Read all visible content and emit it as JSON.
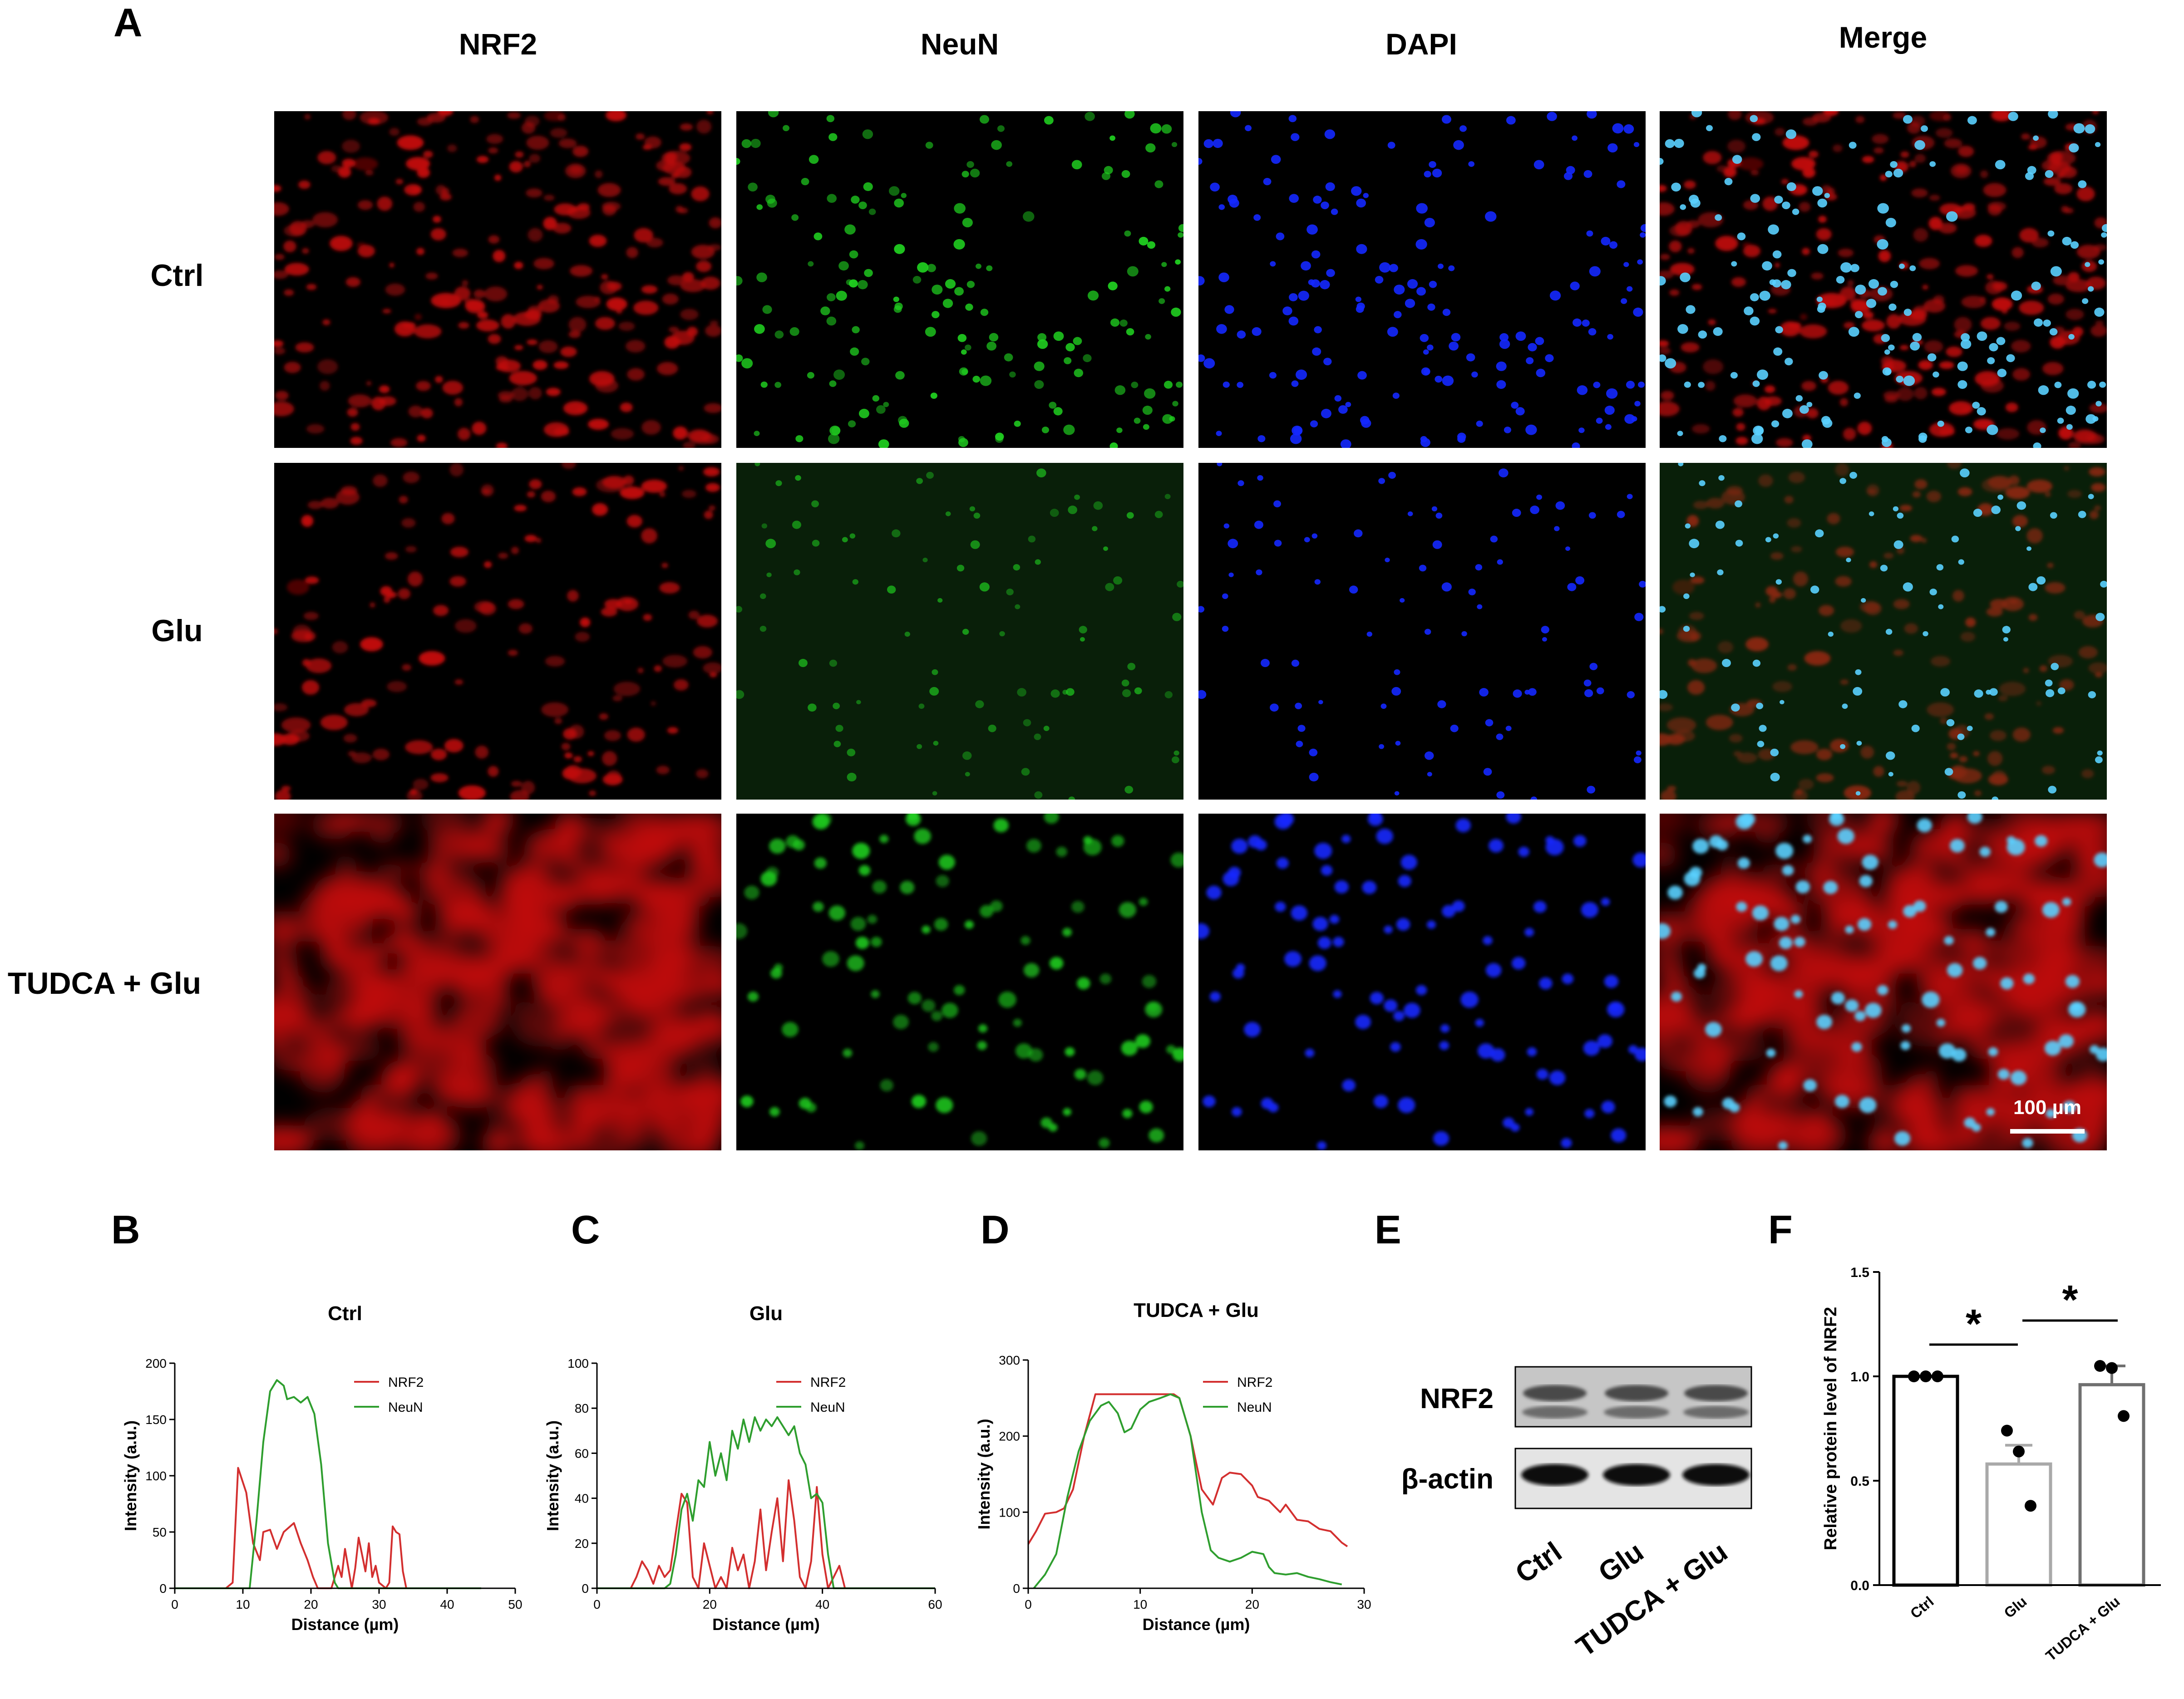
{
  "panel_labels": {
    "A": "A",
    "B": "B",
    "C": "C",
    "D": "D",
    "E": "E",
    "F": "F"
  },
  "microscopy": {
    "columns": [
      "NRF2",
      "NeuN",
      "DAPI",
      "Merge"
    ],
    "rows": [
      "Ctrl",
      "Glu",
      "TUDCA + Glu"
    ],
    "scale_bar": "100 µm",
    "channel_colors": {
      "NRF2": "#e01010",
      "NeuN": "#20d020",
      "DAPI": "#1428ff",
      "Merge": "#5ad0ff"
    }
  },
  "chart_data": [
    {
      "id": "B",
      "type": "line",
      "title": "Ctrl",
      "xlabel": "Distance (µm)",
      "ylabel": "Intensity (a.u.)",
      "xlim": [
        0,
        50
      ],
      "ylim": [
        0,
        200
      ],
      "xticks": [
        0,
        10,
        20,
        30,
        40,
        50
      ],
      "yticks": [
        0,
        50,
        100,
        150,
        200
      ],
      "legend_position": "top-right",
      "series": [
        {
          "name": "NRF2",
          "color": "#d32f2f",
          "x": [
            0,
            7.5,
            8.5,
            9.3,
            10.5,
            11.5,
            12.5,
            13,
            14,
            15,
            16,
            17.5,
            18.5,
            19.5,
            20.3,
            21,
            22,
            23,
            24,
            24.5,
            25,
            26,
            26.5,
            27,
            28,
            28.5,
            29,
            29.5,
            30,
            31,
            31.5,
            32,
            32.5,
            33,
            33.5,
            34,
            45
          ],
          "y": [
            0,
            0,
            5,
            107,
            85,
            40,
            25,
            50,
            52,
            35,
            50,
            58,
            40,
            25,
            10,
            0,
            0,
            0,
            20,
            10,
            35,
            0,
            18,
            45,
            15,
            40,
            10,
            20,
            5,
            0,
            5,
            55,
            50,
            48,
            15,
            0,
            0
          ]
        },
        {
          "name": "NeuN",
          "color": "#2e9e2e",
          "x": [
            0,
            11,
            12,
            13,
            14,
            15,
            16,
            16.5,
            17.5,
            18.5,
            19.5,
            20.5,
            21.5,
            22.5,
            23.5,
            24,
            45
          ],
          "y": [
            0,
            0,
            60,
            130,
            175,
            185,
            180,
            168,
            170,
            165,
            170,
            155,
            110,
            40,
            5,
            0,
            0
          ]
        }
      ]
    },
    {
      "id": "C",
      "type": "line",
      "title": "Glu",
      "xlabel": "Distance (µm)",
      "ylabel": "Intensity (a.u.)",
      "xlim": [
        0,
        60
      ],
      "ylim": [
        0,
        100
      ],
      "xticks": [
        0,
        20,
        40,
        60
      ],
      "yticks": [
        0,
        20,
        40,
        60,
        80,
        100
      ],
      "legend_position": "top-right",
      "series": [
        {
          "name": "NRF2",
          "color": "#d32f2f",
          "x": [
            0,
            6,
            7,
            8,
            9,
            10,
            11,
            12,
            13,
            14,
            15,
            16,
            17,
            18,
            19,
            20,
            21,
            22,
            23,
            24,
            25,
            26,
            27,
            28,
            29,
            30,
            31,
            32,
            33,
            34,
            35,
            36,
            37,
            38,
            39,
            40,
            41,
            42,
            43,
            44,
            45
          ],
          "y": [
            0,
            0,
            5,
            12,
            8,
            2,
            10,
            5,
            8,
            25,
            42,
            38,
            5,
            0,
            20,
            10,
            0,
            5,
            0,
            18,
            8,
            15,
            0,
            12,
            35,
            8,
            25,
            40,
            12,
            48,
            30,
            5,
            0,
            12,
            45,
            15,
            0,
            5,
            10,
            0,
            0
          ]
        },
        {
          "name": "NeuN",
          "color": "#2e9e2e",
          "x": [
            0,
            12,
            13,
            14,
            15,
            16,
            17,
            18,
            19,
            20,
            21,
            22,
            23,
            24,
            25,
            26,
            27,
            28,
            29,
            30,
            31,
            32,
            33,
            34,
            35,
            36,
            37,
            38,
            39,
            40,
            41,
            42,
            43,
            60
          ],
          "y": [
            0,
            0,
            2,
            15,
            35,
            42,
            30,
            48,
            45,
            65,
            50,
            60,
            48,
            70,
            62,
            75,
            65,
            76,
            70,
            75,
            72,
            76,
            72,
            68,
            72,
            60,
            55,
            40,
            42,
            38,
            15,
            0,
            0,
            0
          ]
        }
      ]
    },
    {
      "id": "D",
      "type": "line",
      "title": "TUDCA + Glu",
      "xlabel": "Distance (µm)",
      "ylabel": "Intensity (a.u.)",
      "xlim": [
        0,
        30
      ],
      "ylim": [
        0,
        300
      ],
      "xticks": [
        0,
        10,
        20,
        30
      ],
      "yticks": [
        0,
        100,
        200,
        300
      ],
      "legend_position": "top-right",
      "series": [
        {
          "name": "NRF2",
          "color": "#d32f2f",
          "x": [
            0,
            0.7,
            1.5,
            2.5,
            3.2,
            4,
            5,
            6,
            7,
            8,
            9,
            10,
            11,
            12,
            13,
            13.5,
            14.5,
            15.5,
            16.5,
            17.3,
            18,
            19,
            20,
            20.5,
            21.5,
            22.5,
            23,
            24,
            25,
            26,
            27,
            28,
            28.5
          ],
          "y": [
            58,
            75,
            98,
            100,
            105,
            130,
            200,
            255,
            255,
            255,
            255,
            255,
            255,
            255,
            255,
            250,
            200,
            130,
            110,
            145,
            152,
            150,
            135,
            120,
            115,
            100,
            110,
            90,
            88,
            78,
            75,
            60,
            55
          ]
        },
        {
          "name": "NeuN",
          "color": "#2e9e2e",
          "x": [
            0.5,
            1.5,
            2.5,
            3.5,
            4.5,
            5.5,
            6.5,
            7.2,
            8,
            8.6,
            9.2,
            10,
            10.8,
            11.8,
            12.7,
            13.5,
            14.5,
            15.5,
            16.3,
            17,
            18,
            19,
            20,
            21,
            21.5,
            22,
            23,
            24,
            25,
            26,
            27,
            28
          ],
          "y": [
            0,
            18,
            45,
            120,
            180,
            220,
            240,
            245,
            230,
            205,
            210,
            235,
            245,
            250,
            255,
            250,
            200,
            100,
            50,
            40,
            35,
            40,
            48,
            45,
            28,
            20,
            18,
            20,
            15,
            12,
            8,
            5
          ]
        }
      ]
    },
    {
      "id": "F",
      "type": "bar",
      "title": "",
      "ylabel": "Relative protein level of NRF2",
      "categories": [
        "Ctrl",
        "Glu",
        "TUDCA + Glu"
      ],
      "values": [
        1.0,
        0.58,
        0.96
      ],
      "errors": [
        0.0,
        0.09,
        0.09
      ],
      "points": [
        [
          1.0,
          1.0,
          1.0
        ],
        [
          0.74,
          0.64,
          0.38
        ],
        [
          1.05,
          1.04,
          0.81
        ]
      ],
      "bar_colors": [
        "#000000",
        "#a9a9a9",
        "#707070"
      ],
      "ylim": [
        0,
        1.5
      ],
      "yticks": [
        "0.0",
        "0.5",
        "1.0",
        "1.5"
      ],
      "significance": [
        {
          "between": [
            "Ctrl",
            "Glu"
          ],
          "label": "*"
        },
        {
          "between": [
            "Glu",
            "TUDCA + Glu"
          ],
          "label": "*"
        }
      ]
    }
  ],
  "western_blot": {
    "rows": [
      "NRF2",
      "β-actin"
    ],
    "lanes": [
      "Ctrl",
      "Glu",
      "TUDCA + Glu"
    ]
  }
}
